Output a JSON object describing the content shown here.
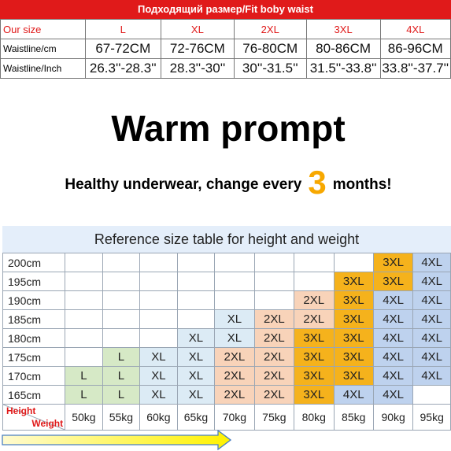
{
  "waist_table": {
    "banner": "Подходящий размер/Fit boby waist",
    "rows": [
      {
        "label": "Our size",
        "values": [
          "L",
          "XL",
          "2XL",
          "3XL",
          "4XL"
        ]
      },
      {
        "label": "Waistline/cm",
        "values": [
          "67-72CM",
          "72-76CM",
          "76-80CM",
          "80-86CM",
          "86-96CM"
        ]
      },
      {
        "label": "Waistline/Inch",
        "values": [
          "26.3''-28.3''",
          "28.3''-30''",
          "30''-31.5''",
          "31.5''-33.8''",
          "33.8''-37.7''"
        ]
      }
    ]
  },
  "prompt": {
    "title": "Warm prompt",
    "line_before": "Healthy underwear, change every",
    "number": "3",
    "line_after": "months!"
  },
  "size_reference": {
    "title": "Reference size table for height and weight",
    "corner_height": "Height",
    "corner_weight": "Weight",
    "weights": [
      "50kg",
      "55kg",
      "60kg",
      "65kg",
      "70kg",
      "75kg",
      "80kg",
      "85kg",
      "90kg",
      "95kg"
    ],
    "rows": [
      {
        "height": "200cm",
        "cells": [
          "",
          "",
          "",
          "",
          "",
          "",
          "",
          "",
          "3XL",
          "4XL"
        ]
      },
      {
        "height": "195cm",
        "cells": [
          "",
          "",
          "",
          "",
          "",
          "",
          "",
          "3XL",
          "3XL",
          "4XL"
        ]
      },
      {
        "height": "190cm",
        "cells": [
          "",
          "",
          "",
          "",
          "",
          "",
          "2XL",
          "3XL",
          "4XL",
          "4XL"
        ]
      },
      {
        "height": "185cm",
        "cells": [
          "",
          "",
          "",
          "",
          "XL",
          "2XL",
          "2XL",
          "3XL",
          "4XL",
          "4XL"
        ]
      },
      {
        "height": "180cm",
        "cells": [
          "",
          "",
          "",
          "XL",
          "XL",
          "2XL",
          "3XL",
          "3XL",
          "4XL",
          "4XL"
        ]
      },
      {
        "height": "175cm",
        "cells": [
          "",
          "L",
          "XL",
          "XL",
          "2XL",
          "2XL",
          "3XL",
          "3XL",
          "4XL",
          "4XL"
        ]
      },
      {
        "height": "170cm",
        "cells": [
          "L",
          "L",
          "XL",
          "XL",
          "2XL",
          "2XL",
          "3XL",
          "3XL",
          "4XL",
          "4XL"
        ]
      },
      {
        "height": "165cm",
        "cells": [
          "L",
          "L",
          "XL",
          "XL",
          "2XL",
          "2XL",
          "3XL",
          "4XL",
          "4XL",
          ""
        ]
      }
    ],
    "size_colors": {
      "L": "#d6e9c6",
      "XL": "#dcebf5",
      "2XL": "#f8d3b9",
      "3XL": "#f5b21c",
      "4XL": "#bed2ee"
    }
  },
  "colors": {
    "banner_red": "#e01a1a",
    "accent_yellow": "#f7a800",
    "table_bg": "#e4eefa",
    "arrow_start": "#fffbd0",
    "arrow_end": "#fff200"
  }
}
